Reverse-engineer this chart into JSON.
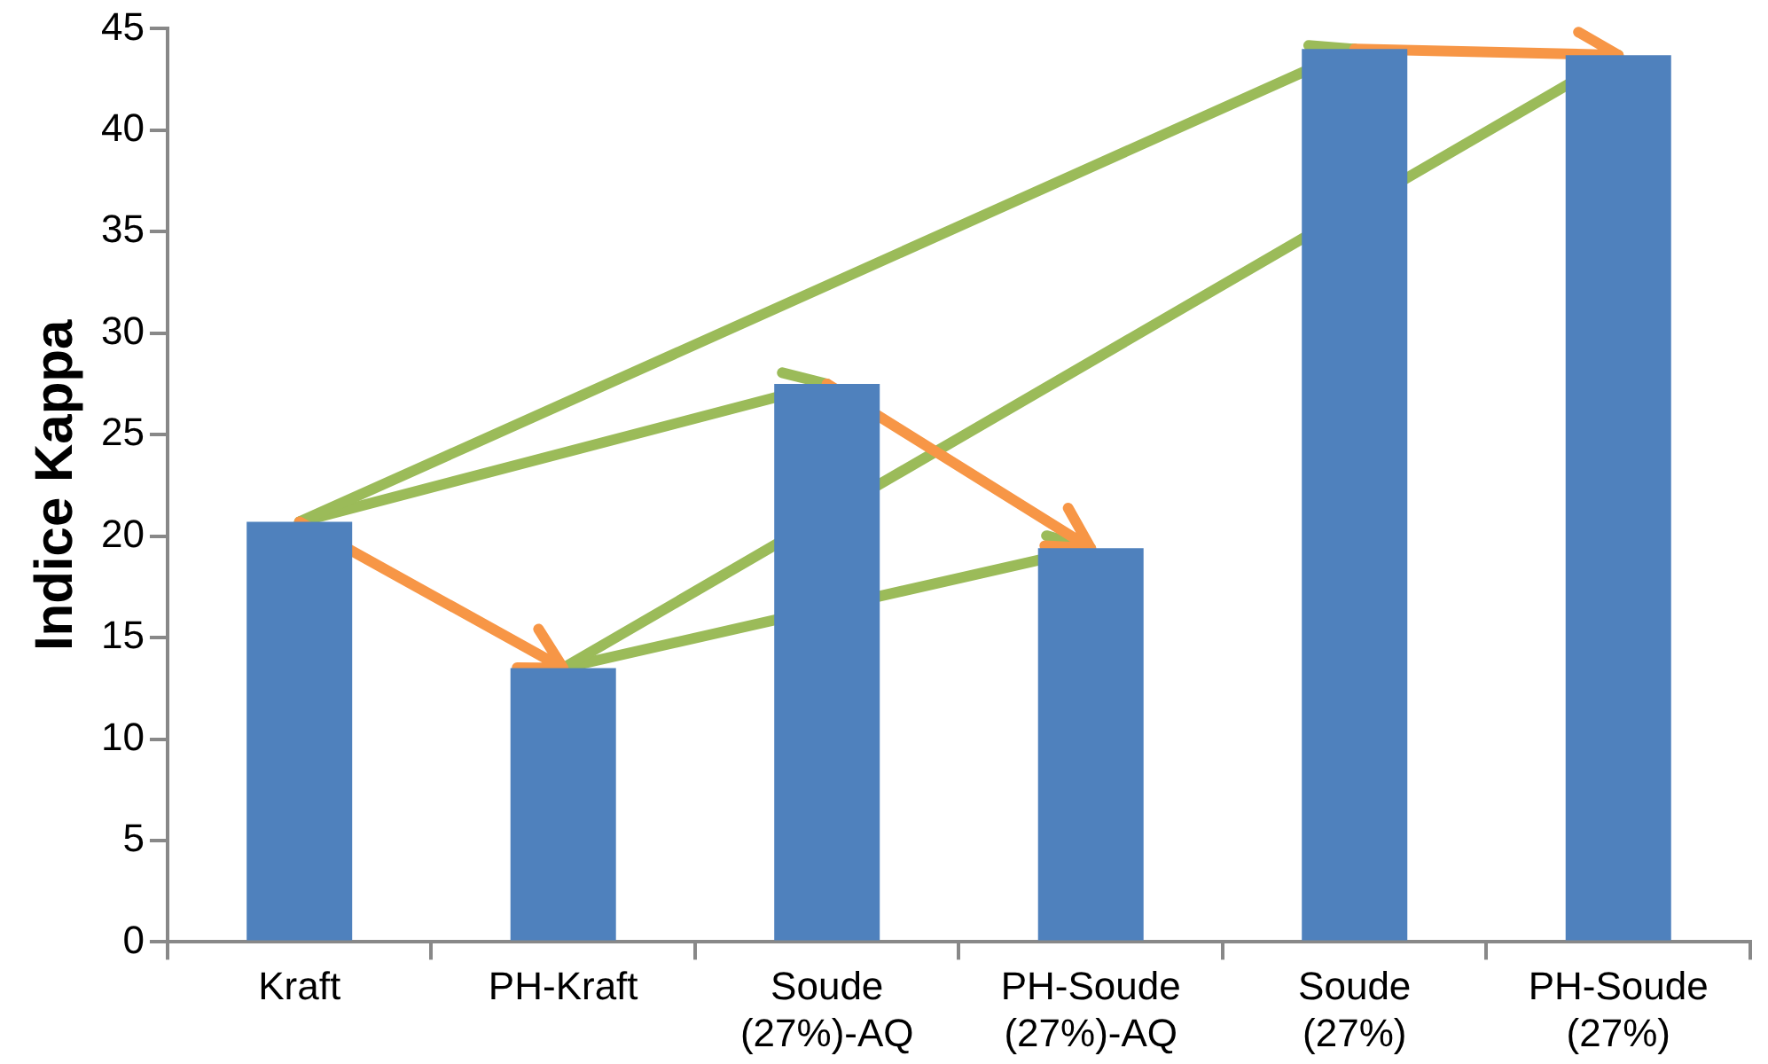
{
  "chart_data": {
    "type": "bar",
    "ylabel": "Indice Kappa",
    "categories": [
      "Kraft",
      "PH-Kraft",
      "Soude\n(27%)-AQ",
      "PH-Soude\n(27%)-AQ",
      "Soude\n(27%)",
      "PH-Soude\n(27%)"
    ],
    "values": [
      20.7,
      13.5,
      27.5,
      19.4,
      44.0,
      43.7
    ],
    "color": "#4f81bd",
    "ylim": [
      0,
      45
    ],
    "yticks": [
      0,
      5,
      10,
      15,
      20,
      25,
      30,
      35,
      40,
      45
    ],
    "grid": false,
    "legend": false
  }
}
